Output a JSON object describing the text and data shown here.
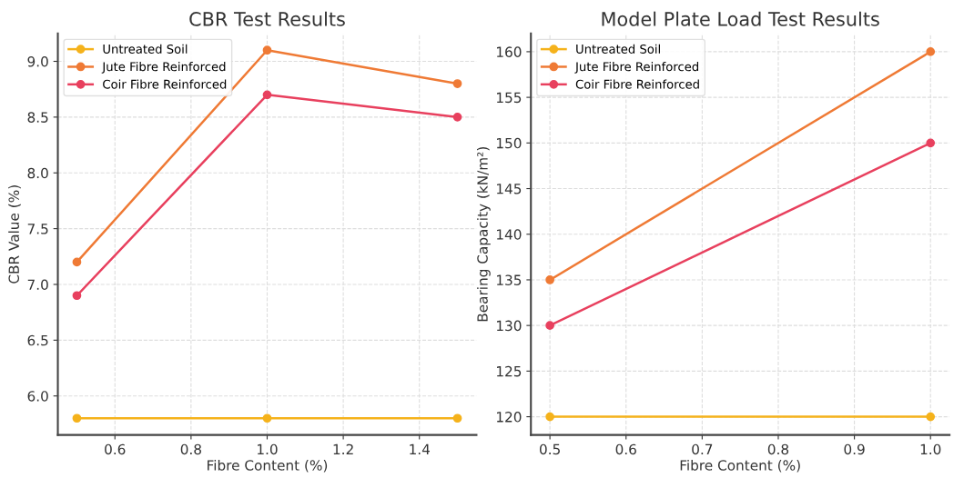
{
  "chart_data": [
    {
      "type": "line",
      "title": "CBR Test Results",
      "xlabel": "Fibre Content (%)",
      "ylabel": "CBR Value (%)",
      "x": [
        0.5,
        1.0,
        1.5
      ],
      "series": [
        {
          "name": "Untreated Soil",
          "color": "#f5b21b",
          "values": [
            5.8,
            5.8,
            5.8
          ]
        },
        {
          "name": "Jute Fibre Reinforced",
          "color": "#ef7a35",
          "values": [
            7.2,
            9.1,
            8.8
          ]
        },
        {
          "name": "Coir Fibre Reinforced",
          "color": "#e8405e",
          "values": [
            6.9,
            8.7,
            8.5
          ]
        }
      ],
      "xlim": [
        0.45,
        1.55
      ],
      "xticks": [
        0.6,
        0.8,
        {
          "value": 1,
          "label": "1.0"
        },
        1.2,
        1.4
      ],
      "ylim": [
        5.65,
        9.25
      ],
      "yticks": [
        {
          "value": 6,
          "label": "6.0"
        },
        6.5,
        {
          "value": 7,
          "label": "7.0"
        },
        7.5,
        {
          "value": 8,
          "label": "8.0"
        },
        8.5,
        {
          "value": 9,
          "label": "9.0"
        }
      ],
      "grid": true,
      "legend": "top left",
      "marker": "circle",
      "line_style": "solid"
    },
    {
      "type": "line",
      "title": "Model Plate Load Test Results",
      "xlabel": "Fibre Content (%)",
      "ylabel": "Bearing Capacity (kN/m²)",
      "x": [
        0.5,
        1.0
      ],
      "series": [
        {
          "name": "Untreated Soil",
          "color": "#f5b21b",
          "values": [
            120,
            120
          ]
        },
        {
          "name": "Jute Fibre Reinforced",
          "color": "#ef7a35",
          "values": [
            135,
            160
          ]
        },
        {
          "name": "Coir Fibre Reinforced",
          "color": "#e8405e",
          "values": [
            130,
            150
          ]
        }
      ],
      "xlim": [
        0.475,
        1.025
      ],
      "xticks": [
        0.5,
        0.6,
        0.7,
        0.8,
        0.9,
        {
          "value": 1,
          "label": "1.0"
        }
      ],
      "ylim": [
        118,
        162
      ],
      "yticks": [
        120,
        125,
        130,
        135,
        140,
        145,
        150,
        155,
        160
      ],
      "grid": true,
      "legend": "top left",
      "marker": "circle",
      "line_style": "solid"
    }
  ]
}
